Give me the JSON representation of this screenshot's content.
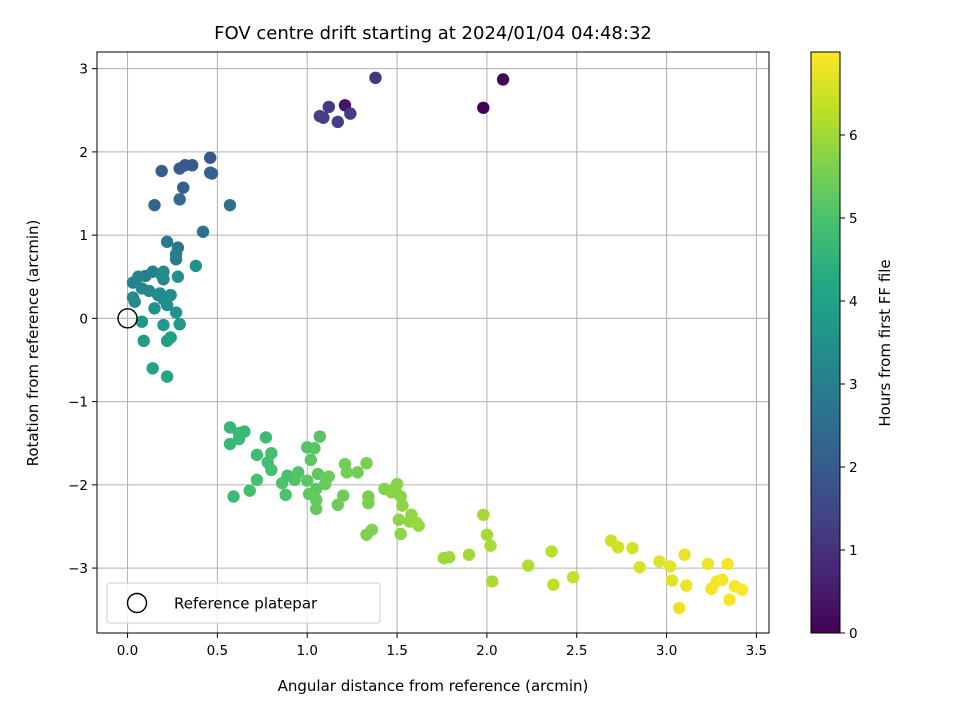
{
  "chart_data": {
    "type": "scatter",
    "title": "FOV centre drift starting at 2024/01/04 04:48:32",
    "xlabel": "Angular distance from reference (arcmin)",
    "ylabel": "Rotation from reference (arcmin)",
    "xlim": [
      -0.17,
      3.57
    ],
    "ylim": [
      -3.78,
      3.2
    ],
    "xticks": [
      0.0,
      0.5,
      1.0,
      1.5,
      2.0,
      2.5,
      3.0,
      3.5
    ],
    "xtick_labels": [
      "0.0",
      "0.5",
      "1.0",
      "1.5",
      "2.0",
      "2.5",
      "3.0",
      "3.5"
    ],
    "yticks": [
      -3,
      -2,
      -1,
      0,
      1,
      2,
      3
    ],
    "ytick_labels": [
      "−3",
      "−2",
      "−1",
      "0",
      "1",
      "2",
      "3"
    ],
    "grid": true,
    "colormap": "viridis",
    "colorbar": {
      "label": "Hours from first FF file",
      "range": [
        0,
        7.0
      ],
      "ticks": [
        0,
        1,
        2,
        3,
        4,
        5,
        6
      ],
      "tick_labels": [
        "0",
        "1",
        "2",
        "3",
        "4",
        "5",
        "6"
      ]
    },
    "reference": {
      "x": 0.0,
      "y": 0.0,
      "label": "Reference platepar"
    },
    "legend_position": "lower-left",
    "points": [
      [
        1.98,
        2.53,
        0.02
      ],
      [
        2.09,
        2.87,
        0.08
      ],
      [
        1.21,
        2.56,
        0.35
      ],
      [
        1.38,
        2.89,
        1.15
      ],
      [
        1.12,
        2.54,
        1.2
      ],
      [
        1.24,
        2.46,
        1.25
      ],
      [
        1.17,
        2.36,
        1.3
      ],
      [
        1.09,
        2.41,
        1.35
      ],
      [
        1.07,
        2.43,
        1.38
      ],
      [
        0.46,
        1.93,
        1.85
      ],
      [
        0.36,
        1.84,
        1.9
      ],
      [
        0.32,
        1.84,
        1.95
      ],
      [
        0.29,
        1.8,
        2.0
      ],
      [
        0.19,
        1.77,
        2.05
      ],
      [
        0.31,
        1.57,
        2.1
      ],
      [
        0.46,
        1.75,
        2.15
      ],
      [
        0.47,
        1.74,
        2.2
      ],
      [
        0.15,
        1.36,
        2.3
      ],
      [
        0.29,
        1.43,
        2.4
      ],
      [
        0.57,
        1.36,
        2.55
      ],
      [
        0.42,
        1.04,
        2.7
      ],
      [
        0.28,
        0.85,
        2.75
      ],
      [
        0.22,
        0.92,
        2.8
      ],
      [
        0.27,
        0.71,
        2.9
      ],
      [
        0.27,
        0.77,
        2.95
      ],
      [
        0.1,
        0.51,
        3.0
      ],
      [
        0.14,
        0.56,
        3.05
      ],
      [
        0.06,
        0.5,
        3.1
      ],
      [
        0.03,
        0.43,
        3.12
      ],
      [
        0.2,
        0.47,
        3.15
      ],
      [
        0.2,
        0.56,
        3.18
      ],
      [
        0.08,
        0.36,
        3.2
      ],
      [
        0.12,
        0.33,
        3.22
      ],
      [
        0.17,
        0.28,
        3.25
      ],
      [
        0.03,
        0.25,
        3.28
      ],
      [
        0.04,
        0.2,
        3.3
      ],
      [
        0.22,
        0.16,
        3.32
      ],
      [
        0.2,
        0.23,
        3.35
      ],
      [
        0.24,
        0.28,
        3.38
      ],
      [
        0.18,
        0.3,
        3.4
      ],
      [
        0.19,
        0.52,
        3.42
      ],
      [
        0.28,
        0.5,
        3.45
      ],
      [
        0.38,
        0.63,
        3.5
      ],
      [
        0.15,
        0.12,
        3.55
      ],
      [
        0.27,
        0.07,
        3.6
      ],
      [
        0.29,
        -0.07,
        3.7
      ],
      [
        0.08,
        -0.04,
        3.75
      ],
      [
        0.09,
        -0.27,
        3.85
      ],
      [
        0.2,
        -0.08,
        3.8
      ],
      [
        0.24,
        -0.23,
        3.9
      ],
      [
        0.22,
        -0.27,
        3.95
      ],
      [
        0.14,
        -0.6,
        4.05
      ],
      [
        0.22,
        -0.7,
        4.1
      ],
      [
        0.57,
        -1.31,
        4.6
      ],
      [
        0.57,
        -1.51,
        4.65
      ],
      [
        0.62,
        -1.38,
        4.68
      ],
      [
        0.65,
        -1.36,
        4.7
      ],
      [
        0.62,
        -1.45,
        4.72
      ],
      [
        0.59,
        -2.14,
        4.75
      ],
      [
        0.77,
        -1.43,
        4.78
      ],
      [
        0.72,
        -1.64,
        4.8
      ],
      [
        0.8,
        -1.62,
        4.85
      ],
      [
        0.78,
        -1.73,
        4.88
      ],
      [
        0.8,
        -1.82,
        4.9
      ],
      [
        0.68,
        -2.07,
        4.9
      ],
      [
        0.72,
        -1.94,
        4.92
      ],
      [
        0.89,
        -1.89,
        4.95
      ],
      [
        0.88,
        -2.12,
        5.0
      ],
      [
        0.86,
        -1.98,
        5.02
      ],
      [
        0.93,
        -1.94,
        5.05
      ],
      [
        0.95,
        -1.85,
        5.08
      ],
      [
        1.0,
        -1.55,
        5.1
      ],
      [
        1.04,
        -1.56,
        5.12
      ],
      [
        1.07,
        -1.42,
        5.15
      ],
      [
        1.0,
        -1.95,
        5.18
      ],
      [
        1.02,
        -1.7,
        5.2
      ],
      [
        1.05,
        -2.05,
        5.22
      ],
      [
        1.06,
        -1.87,
        5.25
      ],
      [
        1.01,
        -2.11,
        5.28
      ],
      [
        1.05,
        -2.18,
        5.3
      ],
      [
        1.05,
        -2.29,
        5.32
      ],
      [
        1.1,
        -1.99,
        5.35
      ],
      [
        1.12,
        -1.9,
        5.38
      ],
      [
        1.17,
        -2.24,
        5.4
      ],
      [
        1.2,
        -2.13,
        5.45
      ],
      [
        1.21,
        -1.75,
        5.48
      ],
      [
        1.28,
        -1.85,
        5.5
      ],
      [
        1.22,
        -1.85,
        5.52
      ],
      [
        1.33,
        -1.74,
        5.55
      ],
      [
        1.34,
        -2.14,
        5.58
      ],
      [
        1.34,
        -2.22,
        5.6
      ],
      [
        1.33,
        -2.6,
        5.62
      ],
      [
        1.36,
        -2.54,
        5.65
      ],
      [
        1.43,
        -2.05,
        5.68
      ],
      [
        1.47,
        -2.09,
        5.7
      ],
      [
        1.49,
        -2.04,
        5.72
      ],
      [
        1.5,
        -1.99,
        5.74
      ],
      [
        1.52,
        -2.14,
        5.76
      ],
      [
        1.53,
        -2.25,
        5.78
      ],
      [
        1.51,
        -2.42,
        5.8
      ],
      [
        1.52,
        -2.59,
        5.82
      ],
      [
        1.57,
        -2.44,
        5.84
      ],
      [
        1.58,
        -2.36,
        5.86
      ],
      [
        1.61,
        -2.46,
        5.88
      ],
      [
        1.62,
        -2.49,
        5.9
      ],
      [
        1.76,
        -2.88,
        5.95
      ],
      [
        1.79,
        -2.87,
        5.97
      ],
      [
        1.9,
        -2.84,
        6.0
      ],
      [
        1.98,
        -2.36,
        6.02
      ],
      [
        2.0,
        -2.6,
        6.05
      ],
      [
        2.02,
        -2.73,
        6.08
      ],
      [
        2.03,
        -3.16,
        6.1
      ],
      [
        2.23,
        -2.97,
        6.2
      ],
      [
        2.36,
        -2.8,
        6.25
      ],
      [
        2.37,
        -3.2,
        6.3
      ],
      [
        2.48,
        -3.11,
        6.35
      ],
      [
        2.69,
        -2.67,
        6.45
      ],
      [
        2.73,
        -2.75,
        6.5
      ],
      [
        2.81,
        -2.76,
        6.55
      ],
      [
        2.85,
        -2.99,
        6.6
      ],
      [
        2.96,
        -2.92,
        6.65
      ],
      [
        3.02,
        -2.98,
        6.7
      ],
      [
        3.03,
        -3.15,
        6.72
      ],
      [
        3.07,
        -3.48,
        6.75
      ],
      [
        3.1,
        -2.84,
        6.78
      ],
      [
        3.11,
        -3.21,
        6.8
      ],
      [
        3.23,
        -2.95,
        6.85
      ],
      [
        3.25,
        -3.25,
        6.88
      ],
      [
        3.28,
        -3.16,
        6.9
      ],
      [
        3.31,
        -3.14,
        6.92
      ],
      [
        3.34,
        -2.95,
        6.94
      ],
      [
        3.35,
        -3.38,
        6.95
      ],
      [
        3.38,
        -3.22,
        6.96
      ],
      [
        3.42,
        -3.26,
        6.98
      ]
    ]
  }
}
